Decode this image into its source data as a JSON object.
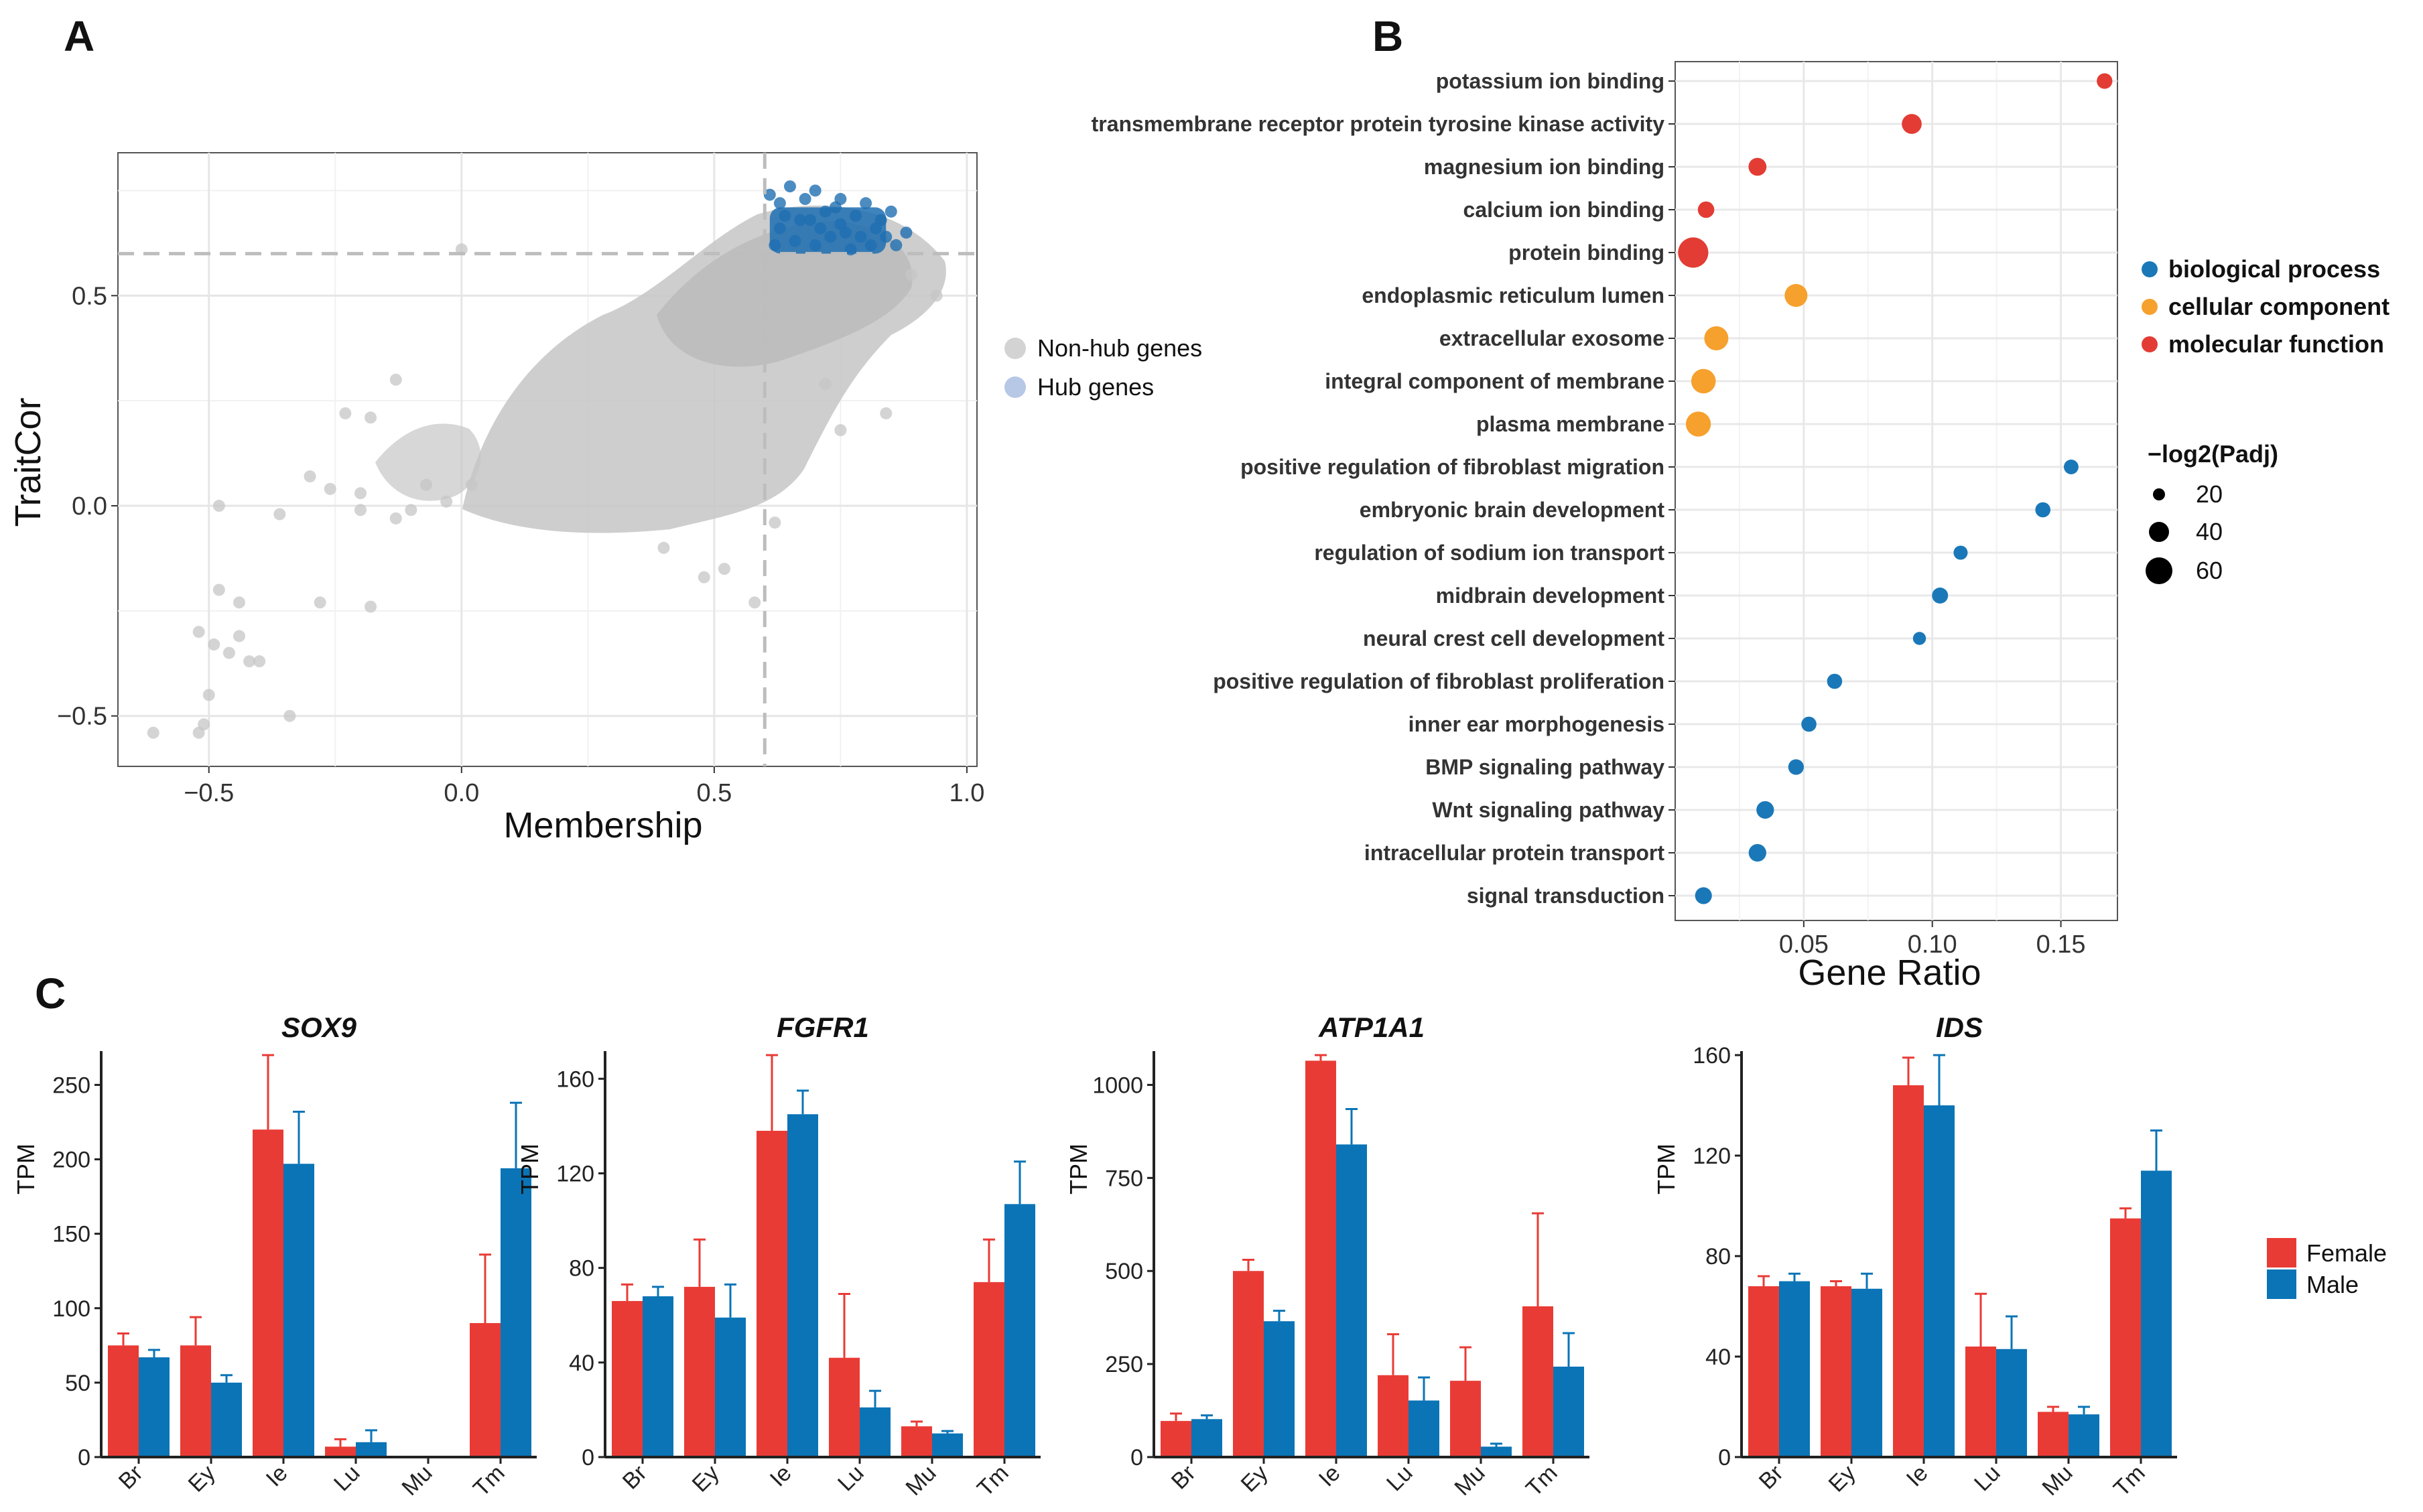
{
  "panels": {
    "a": "A",
    "b": "B",
    "c": "C"
  },
  "scatter": {
    "xlabel": "Membership",
    "ylabel": "TraitCor",
    "xticks": [
      "−0.5",
      "0.0",
      "0.5",
      "1.0"
    ],
    "yticks": [
      "−0.5",
      "0.0",
      "0.5"
    ],
    "legend": {
      "non_hub": "Non-hub genes",
      "hub": "Hub genes"
    },
    "colors": {
      "non_hub": "#c6c6c6",
      "hub": "#1f6fb2"
    }
  },
  "go": {
    "xlabel": "Gene Ratio",
    "xticks": [
      "0.05",
      "0.10",
      "0.15"
    ],
    "category_legend": [
      "biological process",
      "cellular component",
      "molecular function"
    ],
    "size_legend": {
      "title": "−log2(Padj)",
      "labels": [
        "20",
        "40",
        "60"
      ]
    },
    "colors": {
      "biological process": "#1a78b8",
      "cellular component": "#f6a02d",
      "molecular function": "#e23c34"
    }
  },
  "bars": {
    "ylabel": "TPM",
    "legend": [
      "Female",
      "Male"
    ],
    "colors": {
      "Female": "#e93b35",
      "Male": "#0a74b6"
    }
  },
  "chart_data": [
    {
      "type": "scatter",
      "title": "",
      "xlabel": "Membership",
      "ylabel": "TraitCor",
      "xlim": [
        -0.68,
        1.02
      ],
      "ylim": [
        -0.62,
        0.84
      ],
      "thresholds": {
        "x": 0.6,
        "y": 0.6
      },
      "series": [
        {
          "name": "Non-hub genes",
          "points": [
            [
              -0.61,
              -0.54
            ],
            [
              -0.52,
              -0.54
            ],
            [
              -0.5,
              -0.45
            ],
            [
              -0.51,
              -0.52
            ],
            [
              -0.52,
              -0.3
            ],
            [
              -0.49,
              -0.33
            ],
            [
              -0.48,
              -0.2
            ],
            [
              -0.46,
              -0.35
            ],
            [
              -0.44,
              -0.31
            ],
            [
              -0.44,
              -0.23
            ],
            [
              -0.42,
              -0.37
            ],
            [
              -0.4,
              -0.37
            ],
            [
              -0.34,
              -0.5
            ],
            [
              -0.28,
              -0.23
            ],
            [
              -0.18,
              -0.24
            ],
            [
              -0.48,
              0.0
            ],
            [
              -0.36,
              -0.02
            ],
            [
              -0.3,
              0.07
            ],
            [
              -0.26,
              0.04
            ],
            [
              -0.23,
              0.22
            ],
            [
              -0.18,
              0.21
            ],
            [
              -0.13,
              0.3
            ],
            [
              -0.2,
              0.03
            ],
            [
              -0.2,
              -0.01
            ],
            [
              -0.13,
              -0.03
            ],
            [
              -0.1,
              -0.01
            ],
            [
              -0.07,
              0.05
            ],
            [
              -0.03,
              0.01
            ],
            [
              0.02,
              0.05
            ],
            [
              0.0,
              0.61
            ],
            [
              0.58,
              -0.23
            ],
            [
              0.72,
              0.29
            ],
            [
              0.75,
              0.18
            ],
            [
              0.84,
              0.22
            ],
            [
              0.89,
              0.55
            ],
            [
              0.94,
              0.5
            ],
            [
              0.62,
              -0.04
            ],
            [
              0.52,
              -0.15
            ],
            [
              0.48,
              -0.17
            ],
            [
              0.4,
              -0.1
            ]
          ]
        },
        {
          "name": "Hub genes",
          "points": [
            [
              0.61,
              0.74
            ],
            [
              0.63,
              0.72
            ],
            [
              0.65,
              0.76
            ],
            [
              0.67,
              0.68
            ],
            [
              0.68,
              0.73
            ],
            [
              0.7,
              0.75
            ],
            [
              0.72,
              0.7
            ],
            [
              0.74,
              0.71
            ],
            [
              0.75,
              0.67
            ],
            [
              0.76,
              0.65
            ],
            [
              0.78,
              0.69
            ],
            [
              0.8,
              0.72
            ],
            [
              0.82,
              0.66
            ],
            [
              0.84,
              0.64
            ],
            [
              0.86,
              0.62
            ],
            [
              0.88,
              0.65
            ],
            [
              0.63,
              0.66
            ],
            [
              0.66,
              0.63
            ],
            [
              0.7,
              0.62
            ],
            [
              0.73,
              0.64
            ],
            [
              0.77,
              0.61
            ],
            [
              0.81,
              0.62
            ],
            [
              0.85,
              0.7
            ],
            [
              0.62,
              0.62
            ],
            [
              0.69,
              0.68
            ],
            [
              0.71,
              0.66
            ],
            [
              0.79,
              0.64
            ],
            [
              0.83,
              0.68
            ],
            [
              0.64,
              0.69
            ],
            [
              0.75,
              0.73
            ]
          ]
        }
      ]
    },
    {
      "type": "scatter",
      "title": "",
      "xlabel": "Gene Ratio",
      "ylabel": "",
      "xlim": [
        0.0,
        0.172
      ],
      "size_label": "−log2(Padj)",
      "terms": [
        {
          "term": "potassium ion binding",
          "category": "molecular function",
          "gene_ratio": 0.167,
          "neg_log2_padj": 10
        },
        {
          "term": "transmembrane receptor protein tyrosine kinase activity",
          "category": "molecular function",
          "gene_ratio": 0.092,
          "neg_log2_padj": 22
        },
        {
          "term": "magnesium ion binding",
          "category": "molecular function",
          "gene_ratio": 0.032,
          "neg_log2_padj": 16
        },
        {
          "term": "calcium ion binding",
          "category": "molecular function",
          "gene_ratio": 0.012,
          "neg_log2_padj": 12
        },
        {
          "term": "protein binding",
          "category": "molecular function",
          "gene_ratio": 0.007,
          "neg_log2_padj": 70
        },
        {
          "term": "endoplasmic reticulum lumen",
          "category": "cellular component",
          "gene_ratio": 0.047,
          "neg_log2_padj": 33
        },
        {
          "term": "extracellular exosome",
          "category": "cellular component",
          "gene_ratio": 0.016,
          "neg_log2_padj": 38
        },
        {
          "term": "integral component of membrane",
          "category": "cellular component",
          "gene_ratio": 0.011,
          "neg_log2_padj": 40
        },
        {
          "term": "plasma membrane",
          "category": "cellular component",
          "gene_ratio": 0.009,
          "neg_log2_padj": 42
        },
        {
          "term": "positive regulation of fibroblast migration",
          "category": "biological process",
          "gene_ratio": 0.154,
          "neg_log2_padj": 8
        },
        {
          "term": "embryonic brain development",
          "category": "biological process",
          "gene_ratio": 0.143,
          "neg_log2_padj": 9
        },
        {
          "term": "regulation of sodium ion transport",
          "category": "biological process",
          "gene_ratio": 0.111,
          "neg_log2_padj": 7
        },
        {
          "term": "midbrain development",
          "category": "biological process",
          "gene_ratio": 0.103,
          "neg_log2_padj": 11
        },
        {
          "term": "neural crest cell development",
          "category": "biological process",
          "gene_ratio": 0.095,
          "neg_log2_padj": 5
        },
        {
          "term": "positive regulation of fibroblast proliferation",
          "category": "biological process",
          "gene_ratio": 0.062,
          "neg_log2_padj": 9
        },
        {
          "term": "inner ear morphogenesis",
          "category": "biological process",
          "gene_ratio": 0.052,
          "neg_log2_padj": 9
        },
        {
          "term": "BMP signaling pathway",
          "category": "biological process",
          "gene_ratio": 0.047,
          "neg_log2_padj": 10
        },
        {
          "term": "Wnt signaling pathway",
          "category": "biological process",
          "gene_ratio": 0.035,
          "neg_log2_padj": 15
        },
        {
          "term": "intracellular protein transport",
          "category": "biological process",
          "gene_ratio": 0.032,
          "neg_log2_padj": 15
        },
        {
          "term": "signal transduction",
          "category": "biological process",
          "gene_ratio": 0.011,
          "neg_log2_padj": 13
        }
      ]
    },
    {
      "type": "bar",
      "title": "SOX9",
      "ylabel": "TPM",
      "categories": [
        "Br",
        "Ey",
        "Ie",
        "Lu",
        "Mu",
        "Tm"
      ],
      "ylim": [
        0,
        270
      ],
      "yticks": [
        0,
        50,
        100,
        150,
        200,
        250
      ],
      "series": [
        {
          "name": "Female",
          "values": [
            75,
            75,
            220,
            7,
            0,
            90
          ],
          "errors": [
            8,
            19,
            55,
            5,
            0,
            46
          ]
        },
        {
          "name": "Male",
          "values": [
            67,
            50,
            197,
            10,
            0,
            194
          ],
          "errors": [
            5,
            5,
            35,
            8,
            0,
            44
          ]
        }
      ]
    },
    {
      "type": "bar",
      "title": "FGFR1",
      "ylabel": "TPM",
      "categories": [
        "Br",
        "Ey",
        "Ie",
        "Lu",
        "Mu",
        "Tm"
      ],
      "ylim": [
        0,
        170
      ],
      "yticks": [
        0,
        40,
        80,
        120,
        160
      ],
      "series": [
        {
          "name": "Female",
          "values": [
            66,
            72,
            138,
            42,
            13,
            74
          ],
          "errors": [
            7,
            20,
            40,
            27,
            2,
            18
          ]
        },
        {
          "name": "Male",
          "values": [
            68,
            59,
            145,
            21,
            10,
            107
          ],
          "errors": [
            4,
            14,
            10,
            7,
            1,
            18
          ]
        }
      ]
    },
    {
      "type": "bar",
      "title": "ATP1A1",
      "ylabel": "TPM",
      "categories": [
        "Br",
        "Ey",
        "Ie",
        "Lu",
        "Mu",
        "Tm"
      ],
      "ylim": [
        0,
        1080
      ],
      "yticks": [
        0,
        250,
        500,
        750,
        1000
      ],
      "series": [
        {
          "name": "Female",
          "values": [
            97,
            500,
            1065,
            220,
            205,
            405
          ],
          "errors": [
            20,
            30,
            30,
            110,
            90,
            250
          ]
        },
        {
          "name": "Male",
          "values": [
            102,
            365,
            840,
            152,
            28,
            243
          ],
          "errors": [
            10,
            28,
            95,
            62,
            8,
            90
          ]
        }
      ]
    },
    {
      "type": "bar",
      "title": "IDS",
      "ylabel": "TPM",
      "categories": [
        "Br",
        "Ey",
        "Ie",
        "Lu",
        "Mu",
        "Tm"
      ],
      "ylim": [
        0,
        160
      ],
      "yticks": [
        0,
        40,
        80,
        120,
        160
      ],
      "series": [
        {
          "name": "Female",
          "values": [
            68,
            68,
            148,
            44,
            18,
            95
          ],
          "errors": [
            4,
            2,
            11,
            21,
            2,
            4
          ]
        },
        {
          "name": "Male",
          "values": [
            70,
            67,
            140,
            43,
            17,
            114
          ],
          "errors": [
            3,
            6,
            24,
            13,
            3,
            16
          ]
        }
      ]
    }
  ]
}
